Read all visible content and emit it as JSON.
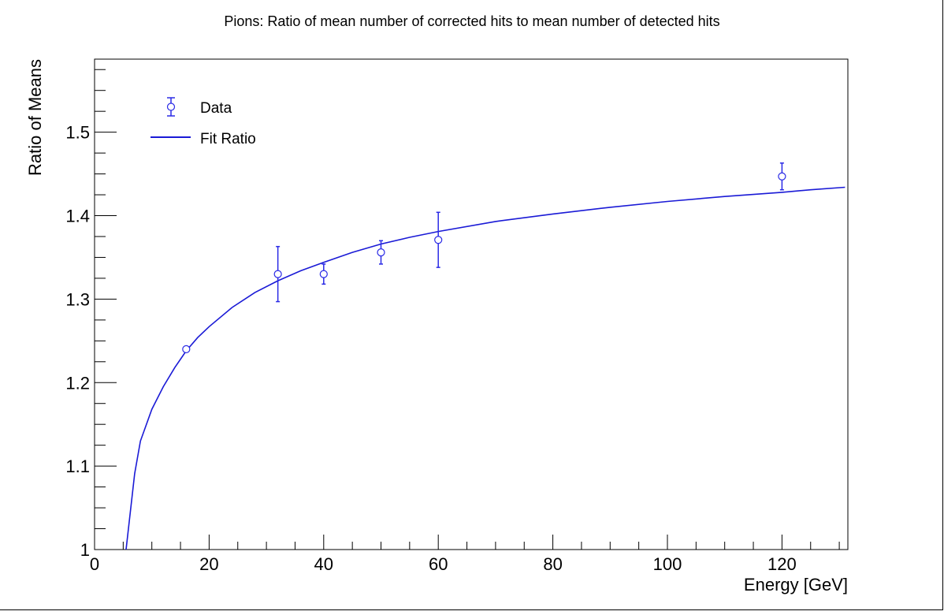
{
  "chart_data": {
    "type": "scatter",
    "title": "Pions: Ratio of mean number of corrected hits to mean number of detected hits",
    "xlabel": "Energy [GeV]",
    "ylabel": "Ratio of Means",
    "xlim": [
      0,
      131.5
    ],
    "ylim": [
      1.0,
      1.5875
    ],
    "x_ticks": [
      0,
      20,
      40,
      60,
      80,
      100,
      120
    ],
    "x_tick_labels": [
      "0",
      "20",
      "40",
      "60",
      "80",
      "100",
      "120"
    ],
    "y_ticks": [
      1.0,
      1.1,
      1.2,
      1.3,
      1.4,
      1.5
    ],
    "y_tick_labels": [
      "1",
      "1.1",
      "1.2",
      "1.3",
      "1.4",
      "1.5"
    ],
    "grid": false,
    "legend_position": "top-left",
    "series": [
      {
        "name": "Data",
        "kind": "points-with-errors",
        "color": "#2a2ae6",
        "x": [
          16,
          32,
          40,
          50,
          60,
          120
        ],
        "y": [
          1.24,
          1.33,
          1.33,
          1.356,
          1.371,
          1.447
        ],
        "yerr": [
          0.002,
          0.033,
          0.012,
          0.014,
          0.033,
          0.016
        ]
      },
      {
        "name": "Fit Ratio",
        "kind": "line",
        "color": "#1a1ad6",
        "x": [
          5.5,
          6,
          7,
          8,
          10,
          12,
          14,
          16,
          18,
          20,
          24,
          28,
          32,
          36,
          40,
          45,
          50,
          55,
          60,
          70,
          80,
          90,
          100,
          110,
          120,
          125,
          131
        ],
        "y": [
          0.985,
          1.03,
          1.091,
          1.13,
          1.168,
          1.195,
          1.218,
          1.238,
          1.254,
          1.267,
          1.29,
          1.308,
          1.322,
          1.334,
          1.344,
          1.356,
          1.366,
          1.374,
          1.381,
          1.393,
          1.402,
          1.41,
          1.417,
          1.423,
          1.428,
          1.431,
          1.434
        ]
      }
    ]
  }
}
